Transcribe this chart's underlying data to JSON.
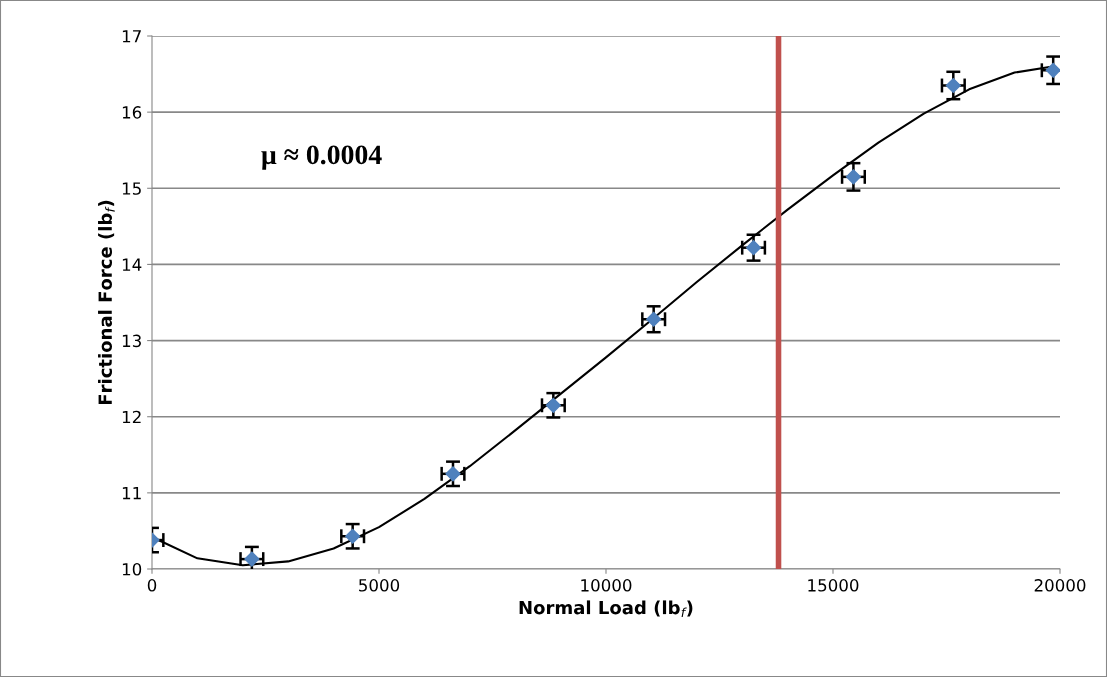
{
  "chart_data": {
    "type": "scatter",
    "xlabel": "Normal Load (lb$_{f}$)",
    "ylabel": "Frictional Force (lb$_{f}$)",
    "xlim": [
      0,
      20000
    ],
    "xticks": [
      0,
      5000,
      10000,
      15000,
      20000
    ],
    "ylim": [
      10,
      17
    ],
    "yticks": [
      10,
      11,
      12,
      13,
      14,
      15,
      16,
      17
    ],
    "grid": "y",
    "series": [
      {
        "marker": "diamond",
        "color": "#4f81bd",
        "x": [
          0,
          2200,
          4420,
          6630,
          8840,
          11050,
          13250,
          15450,
          17650,
          19850
        ],
        "values": [
          10.38,
          10.13,
          10.43,
          11.25,
          12.15,
          13.28,
          14.22,
          15.15,
          16.35,
          16.55
        ],
        "errors": [
          0.16,
          0.16,
          0.16,
          0.16,
          0.16,
          0.17,
          0.17,
          0.18,
          0.18,
          0.18
        ],
        "xerrors": [
          250,
          250,
          250,
          250,
          250,
          250,
          250,
          250,
          250,
          250
        ]
      },
      {
        "type": "line",
        "color": "#000000",
        "x": [
          0,
          1000,
          2000,
          3000,
          4000,
          5000,
          6000,
          7000,
          8000,
          9000,
          10000,
          11000,
          12000,
          13000,
          14000,
          15000,
          16000,
          17000,
          18000,
          19000,
          19850
        ],
        "values": [
          10.42,
          10.14,
          10.05,
          10.1,
          10.27,
          10.55,
          10.92,
          11.35,
          11.82,
          12.3,
          12.78,
          13.27,
          13.77,
          14.25,
          14.72,
          15.17,
          15.6,
          15.98,
          16.3,
          16.52,
          16.6
        ]
      }
    ],
    "ref_lines": [
      {
        "axis": "x",
        "value": 13800,
        "color": "#c0504d"
      }
    ],
    "annotations": [
      "μ ≈ 0.0004"
    ]
  }
}
